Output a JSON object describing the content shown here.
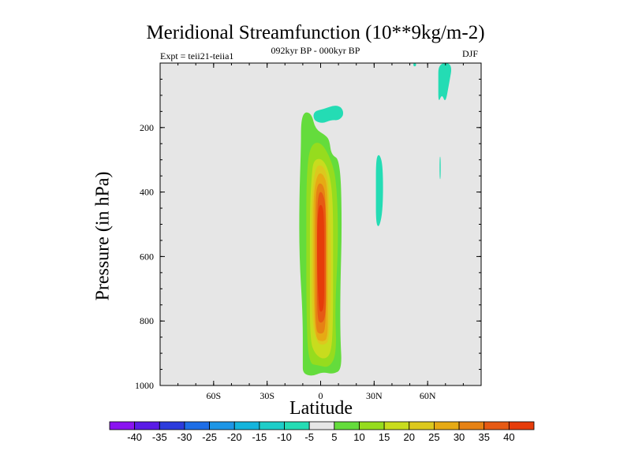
{
  "chart_data": {
    "type": "contour",
    "title": "Meridional Streamfunction (10**9kg/m-2)",
    "subtitle_left": "Expt = teii21-teiia1",
    "subtitle_center": "092kyr BP - 000kyr BP",
    "subtitle_right": "DJF",
    "xlabel": "Latitude",
    "ylabel": "Pressure (in hPa)",
    "xlim": [
      -90,
      90
    ],
    "ylim": [
      1000,
      0
    ],
    "y_scale": "linear, inverted",
    "x_ticks": [
      {
        "value": -60,
        "label": "60S"
      },
      {
        "value": -30,
        "label": "30S"
      },
      {
        "value": 0,
        "label": "0"
      },
      {
        "value": 30,
        "label": "30N"
      },
      {
        "value": 60,
        "label": "60N"
      }
    ],
    "y_ticks": [
      {
        "value": 200,
        "label": "200"
      },
      {
        "value": 400,
        "label": "400"
      },
      {
        "value": 600,
        "label": "600"
      },
      {
        "value": 800,
        "label": "800"
      },
      {
        "value": 1000,
        "label": "1000"
      }
    ],
    "contour_levels": [
      -40,
      -35,
      -30,
      -25,
      -20,
      -15,
      -10,
      -5,
      5,
      10,
      15,
      20,
      25,
      30,
      35,
      40
    ],
    "colorbar_labels": [
      "-40",
      "-35",
      "-30",
      "-25",
      "-20",
      "-15",
      "-10",
      "-5",
      "5",
      "10",
      "15",
      "20",
      "25",
      "30",
      "35",
      "40"
    ],
    "colorbar_colors": [
      "#8a14f0",
      "#5a1ce6",
      "#2c3cdc",
      "#1e6ee6",
      "#1e96e6",
      "#14b4dc",
      "#1ecdc8",
      "#24dcb4",
      "#e6e6e6",
      "#64dc3c",
      "#96dc1e",
      "#c8dc1e",
      "#dcc81e",
      "#e6aa14",
      "#e68214",
      "#e65a14",
      "#e63c0a"
    ],
    "plot_background": "#e6e6e6",
    "features": [
      {
        "name": "positive cell",
        "lat_range": [
          -12,
          12
        ],
        "pressure_range": [
          150,
          970
        ],
        "max_level": 40,
        "center_lat": 0,
        "center_pressure": 600
      },
      {
        "name": "negative patch",
        "lat_range": [
          -3,
          13
        ],
        "pressure_range": [
          130,
          200
        ],
        "level": -5
      },
      {
        "name": "negative patch",
        "lat_range": [
          31,
          35
        ],
        "pressure_range": [
          280,
          510
        ],
        "level": -5
      },
      {
        "name": "negative patch",
        "lat_range": [
          66,
          74
        ],
        "pressure_range": [
          0,
          120
        ],
        "level": -5
      },
      {
        "name": "negative patch",
        "lat_range": [
          67,
          68
        ],
        "pressure_range": [
          290,
          360
        ],
        "level": -5
      },
      {
        "name": "negative patch",
        "lat_range": [
          52,
          53
        ],
        "pressure_range": [
          0,
          10
        ],
        "level": -5
      }
    ]
  }
}
